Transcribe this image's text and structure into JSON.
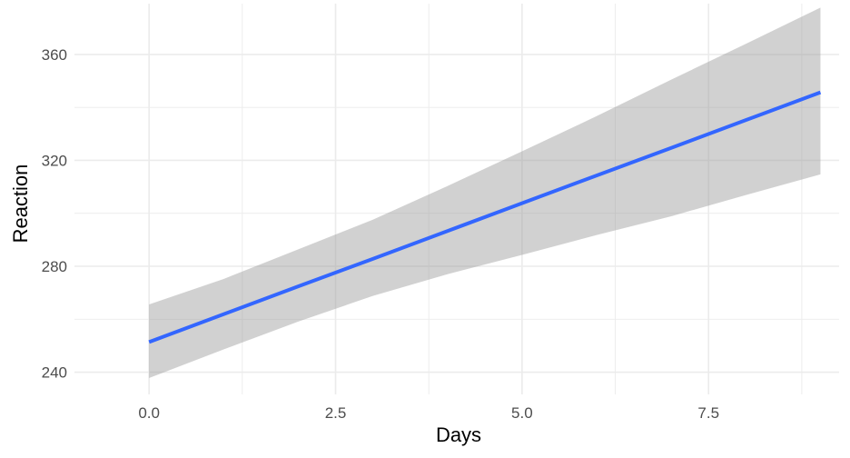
{
  "chart_data": {
    "type": "line",
    "title": "",
    "xlabel": "Days",
    "ylabel": "Reaction",
    "xlim": [
      -1.0,
      9.25
    ],
    "ylim": [
      231.6,
      379.2
    ],
    "x_ticks": [
      0,
      2.5,
      5,
      7.5
    ],
    "x_tick_labels": [
      "0.0",
      "2.5",
      "5.0",
      "7.5"
    ],
    "x_minor_ticks": [
      1.25,
      3.75,
      6.25,
      8.75
    ],
    "y_ticks": [
      240,
      280,
      320,
      360
    ],
    "y_tick_labels": [
      "240",
      "280",
      "320",
      "360"
    ],
    "y_minor_ticks": [
      260,
      300,
      340
    ],
    "grid": true,
    "legend": "none",
    "colors": {
      "line": "#3366ff",
      "ribbon": "#999999",
      "grid": "#ebebeb"
    },
    "series": [
      {
        "x": [
          0,
          1,
          2,
          3,
          4,
          5,
          6,
          7,
          8,
          9
        ],
        "fit": [
          251.4,
          261.9,
          272.4,
          282.8,
          293.3,
          303.8,
          314.3,
          324.7,
          335.2,
          345.7
        ],
        "lower": [
          237.8,
          248.6,
          259.1,
          268.8,
          277.0,
          284.3,
          291.8,
          298.9,
          306.9,
          314.7
        ],
        "upper": [
          265.6,
          275.2,
          286.4,
          297.6,
          310.3,
          323.4,
          336.7,
          350.5,
          364.0,
          377.7
        ]
      }
    ]
  }
}
